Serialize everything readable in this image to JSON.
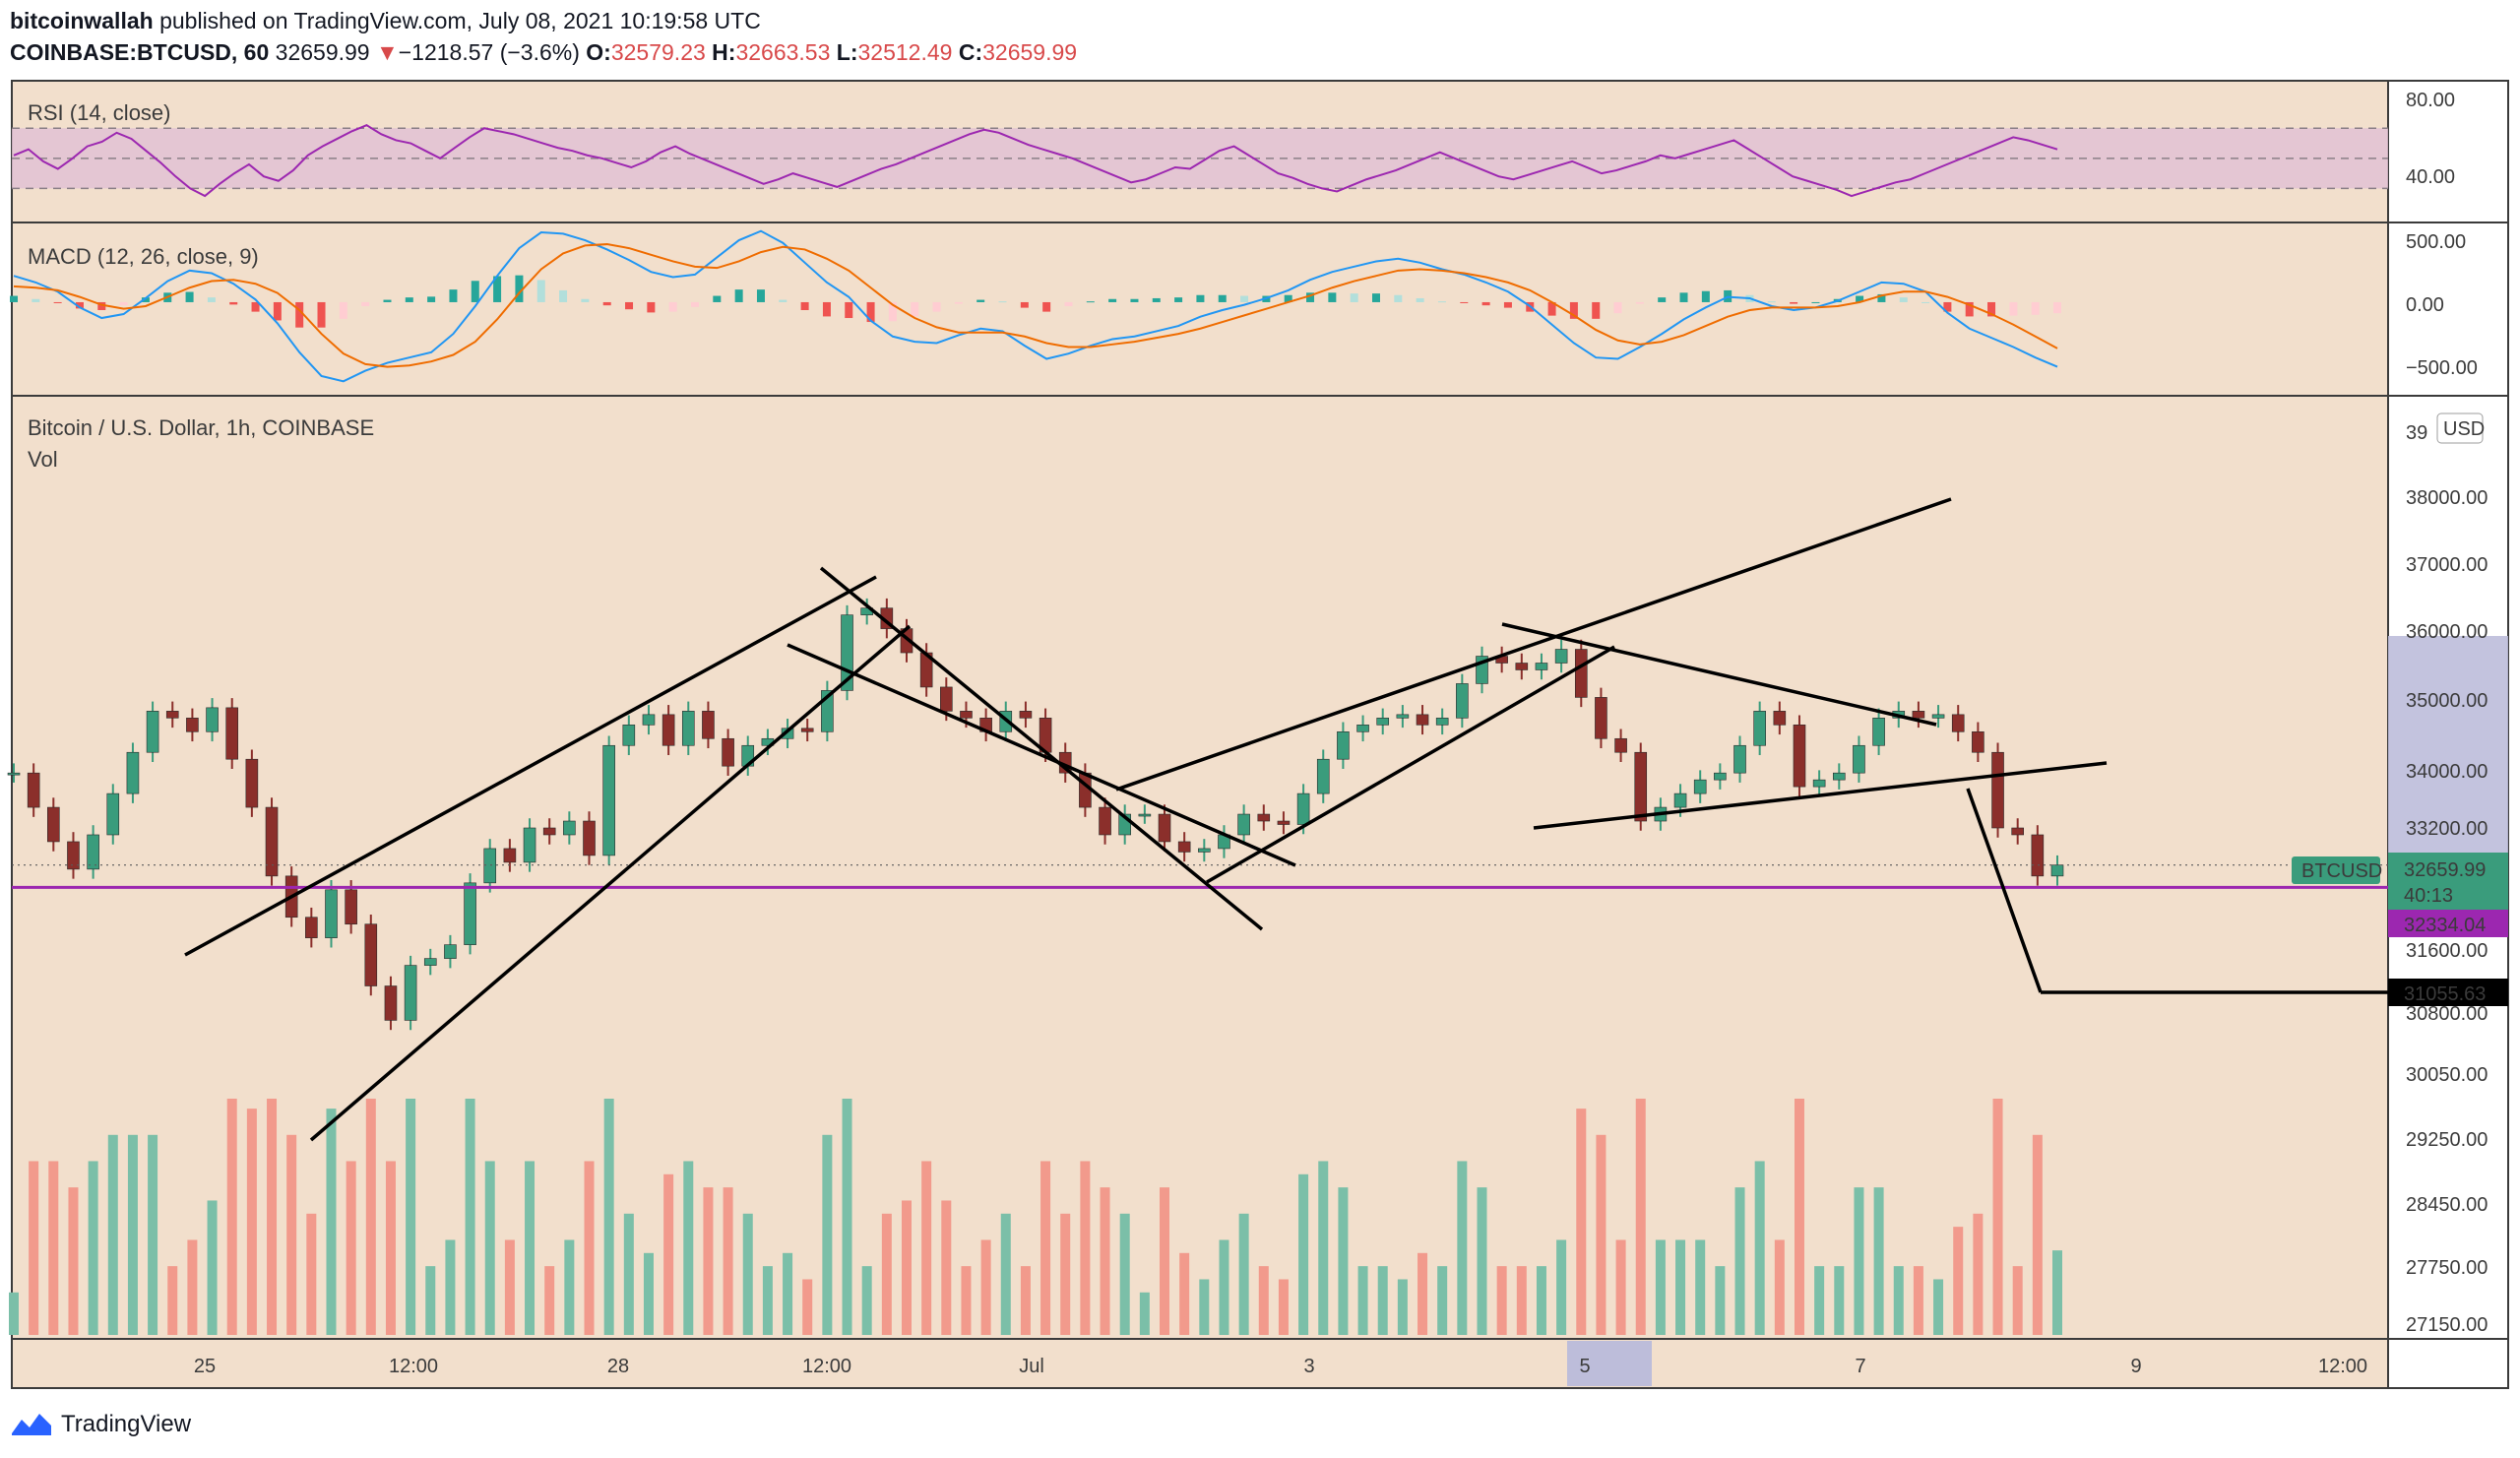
{
  "header": {
    "author": "bitcoinwallah",
    "published_text": "published on TradingView.com, July 08, 2021 10:19:58 UTC",
    "symbol_line": "COINBASE:BTCUSD, 60",
    "last": "32659.99",
    "change_arrow": "▼",
    "change": "−1218.57 (−3.6%)",
    "o_label": "O:",
    "o_value": "32579.23",
    "h_label": "H:",
    "h_value": "32663.53",
    "l_label": "L:",
    "l_value": "32512.49",
    "c_label": "C:",
    "c_value": "32659.99"
  },
  "footer": {
    "brand": "TradingView",
    "logo_icon": "tradingview-logo-icon"
  },
  "colors": {
    "background": "#f2dfcc",
    "up": "#3a9c7c",
    "down": "#8b2f2b",
    "rsi_line": "#9c27b0",
    "rsi_band": "#e2c2d4",
    "macd_line": "#2196f3",
    "signal_line": "#ef6c00",
    "hist_up_strong": "#26a69a",
    "hist_up_weak": "#b2dfdb",
    "hist_down_strong": "#ef5350",
    "hist_down_weak": "#ffcdd2",
    "support_line": "#9c27b0",
    "target_label_bg": "#000000",
    "price_label_bg": "#3a9c7c"
  },
  "chart_data": [
    {
      "type": "line",
      "title": "RSI (14, close)",
      "y_ticks": [
        "80.00",
        "40.00"
      ],
      "ylim": [
        10,
        95
      ],
      "band": [
        30,
        70
      ],
      "midline": 50,
      "series": [
        {
          "values": [
            52,
            56,
            48,
            43,
            50,
            58,
            61,
            67,
            63,
            55,
            47,
            38,
            30,
            25,
            33,
            40,
            46,
            38,
            35,
            42,
            52,
            58,
            63,
            68,
            72,
            66,
            62,
            60,
            55,
            50,
            57,
            64,
            70,
            68,
            66,
            63,
            60,
            57,
            55,
            52,
            50,
            47,
            44,
            48,
            54,
            58,
            53,
            49,
            45,
            41,
            37,
            33,
            36,
            40,
            37,
            34,
            31,
            35,
            39,
            43,
            46,
            50,
            54,
            58,
            62,
            66,
            69,
            67,
            63,
            59,
            56,
            53,
            50,
            46,
            42,
            38,
            34,
            36,
            40,
            44,
            43,
            49,
            55,
            58,
            52,
            46,
            40,
            37,
            33,
            30,
            28,
            32,
            36,
            39,
            42,
            46,
            50,
            54,
            50,
            46,
            42,
            38,
            36,
            39,
            42,
            45,
            48,
            44,
            40,
            42,
            45,
            48,
            52,
            50,
            53,
            56,
            59,
            62,
            56,
            50,
            44,
            38,
            35,
            32,
            29,
            25,
            28,
            31,
            34,
            36,
            40,
            44,
            48,
            52,
            56,
            60,
            64,
            62,
            59,
            56
          ]
        }
      ]
    },
    {
      "type": "line",
      "title": "MACD (12, 26, close, 9)",
      "y_ticks": [
        "500.00",
        "0.00",
        "−500.00"
      ],
      "ylim": [
        -680,
        560
      ],
      "series": [
        {
          "values": [
            200,
            150,
            80,
            -40,
            -120,
            -90,
            30,
            160,
            240,
            220,
            140,
            20,
            -160,
            -380,
            -560,
            -600,
            -520,
            -460,
            -420,
            -380,
            -240,
            -30,
            200,
            410,
            530,
            520,
            470,
            400,
            320,
            230,
            190,
            210,
            340,
            470,
            540,
            450,
            300,
            150,
            40,
            -140,
            -260,
            -300,
            -310,
            -250,
            -200,
            -220,
            -330,
            -430,
            -390,
            -330,
            -280,
            -260,
            -220,
            -180,
            -110,
            -60,
            -20,
            30,
            90,
            170,
            230,
            270,
            310,
            330,
            300,
            250,
            210,
            150,
            80,
            -30,
            -170,
            -310,
            -420,
            -430,
            -340,
            -240,
            -130,
            -40,
            40,
            30,
            -30,
            -60,
            -40,
            10,
            80,
            150,
            140,
            80,
            -80,
            -200,
            -270,
            -340,
            -420,
            -490
          ]
        },
        {
          "values": [
            120,
            110,
            90,
            40,
            -20,
            -50,
            -30,
            40,
            110,
            160,
            170,
            140,
            70,
            -60,
            -240,
            -390,
            -470,
            -490,
            -480,
            -450,
            -400,
            -300,
            -130,
            70,
            250,
            370,
            430,
            440,
            410,
            360,
            310,
            270,
            260,
            310,
            380,
            420,
            400,
            330,
            240,
            110,
            -20,
            -120,
            -190,
            -230,
            -230,
            -230,
            -260,
            -310,
            -340,
            -340,
            -320,
            -300,
            -270,
            -240,
            -200,
            -150,
            -100,
            -50,
            0,
            50,
            110,
            160,
            200,
            240,
            250,
            240,
            220,
            190,
            150,
            90,
            0,
            -100,
            -210,
            -290,
            -320,
            -300,
            -250,
            -180,
            -110,
            -60,
            -40,
            -40,
            -40,
            -30,
            0,
            50,
            80,
            80,
            40,
            -20,
            -90,
            -170,
            -260,
            -350
          ]
        }
      ]
    },
    {
      "type": "line",
      "title": "Bitcoin / U.S. Dollar, 1h, COINBASE",
      "subtitle": "Vol",
      "currency": "USD",
      "x_tick_labels": [
        "25",
        "12:00",
        "28",
        "12:00",
        "Jul",
        "3",
        "5",
        "7",
        "9",
        "12:00"
      ],
      "y_tick_labels": [
        "39",
        "38000.00",
        "37000.00",
        "36000.00",
        "35000.00",
        "34000.00",
        "33200.00",
        "31600.00",
        "30800.00",
        "30050.00",
        "29250.00",
        "28450.00",
        "27750.00",
        "27150.00"
      ],
      "price_labels": {
        "symbol": "BTCUSD",
        "last": "32659.99",
        "countdown": "40:13",
        "support": "32334.04",
        "target": "31055.63"
      },
      "series": [
        {
          "values": [
            34000,
            33500,
            33000,
            32600,
            33100,
            33700,
            34300,
            34900,
            34800,
            34600,
            34950,
            34200,
            33500,
            32500,
            31900,
            31600,
            32300,
            31800,
            30900,
            30400,
            31200,
            31300,
            31500,
            32400,
            32900,
            32700,
            33200,
            33100,
            33300,
            32800,
            34400,
            34700,
            34850,
            34400,
            34900,
            34500,
            34100,
            34400,
            34500,
            34650,
            34600,
            35200,
            36300,
            36400,
            36100,
            35750,
            35250,
            34900,
            34800,
            34600,
            34900,
            34800,
            34300,
            34000,
            33500,
            33100,
            33400,
            33400,
            33000,
            32850,
            32900,
            33100,
            33400,
            33300,
            33250,
            33700,
            34200,
            34600,
            34700,
            34800,
            34850,
            34700,
            34800,
            35300,
            35700,
            35600,
            35500,
            35600,
            35800,
            35100,
            34500,
            34300,
            33300,
            33500,
            33700,
            33900,
            34000,
            34400,
            34900,
            34700,
            33800,
            33900,
            34000,
            34400,
            34800,
            34900,
            34800,
            34850,
            34600,
            34300,
            33200,
            33100,
            32500,
            32660
          ]
        }
      ]
    }
  ]
}
